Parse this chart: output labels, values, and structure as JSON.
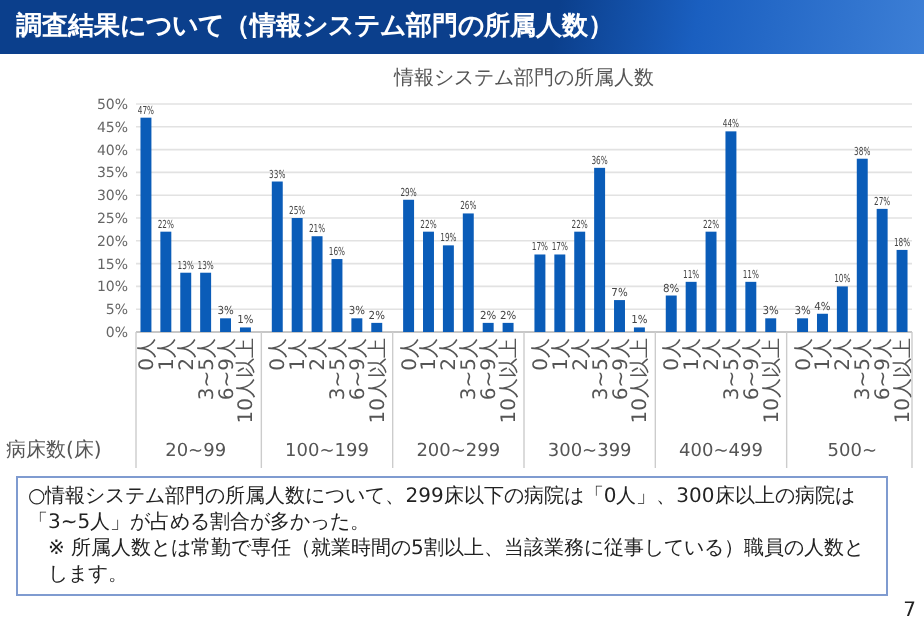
{
  "chart_data": {
    "type": "bar",
    "title": "調査結果について（情報システム部門の所属人数）",
    "subtitle": "情報システム部門の所属人数",
    "xlabel": "病床数(床)",
    "categories": [
      "0人",
      "1人",
      "2人",
      "3~5人",
      "6~9人",
      "10人以上",
      "0人",
      "1人",
      "2人",
      "3~5人",
      "6~9人",
      "10人以上",
      "0人",
      "1人",
      "2人",
      "3~5人",
      "6~9人",
      "10人以上",
      "0人",
      "1人",
      "2人",
      "3~5人",
      "6~9人",
      "10人以上",
      "0人",
      "1人",
      "2人",
      "3~5人",
      "6~9人",
      "10人以上",
      "0人",
      "1人",
      "2人",
      "3~5人",
      "6~9人",
      "10人以上"
    ],
    "values": [
      47,
      22,
      13,
      13,
      3,
      1,
      33,
      25,
      21,
      16,
      3,
      2,
      29,
      22,
      19,
      26,
      2,
      2,
      17,
      17,
      22,
      36,
      7,
      1,
      8,
      11,
      22,
      44,
      11,
      3,
      3,
      4,
      10,
      38,
      27,
      18
    ],
    "value_labels": [
      "47%",
      "22%",
      "13%",
      "13%",
      "3%",
      "1%",
      "33%",
      "25%",
      "21%",
      "16%",
      "3%",
      "2%",
      "29%",
      "22%",
      "19%",
      "26%",
      "2%",
      "2%",
      "17%",
      "17%",
      "22%",
      "36%",
      "7%",
      "1%",
      "8%",
      "11%",
      "22%",
      "44%",
      "11%",
      "3%",
      "3%",
      "4%",
      "10%",
      "38%",
      "27%",
      "18%"
    ],
    "color": "#0a5cb8",
    "ylim": [
      0,
      50
    ],
    "yticks": [
      {
        "value": 0,
        "label": "0%"
      },
      {
        "value": 5,
        "label": "5%"
      },
      {
        "value": 10,
        "label": "10%"
      },
      {
        "value": 15,
        "label": "15%"
      },
      {
        "value": 20,
        "label": "20%"
      },
      {
        "value": 25,
        "label": "25%"
      },
      {
        "value": 30,
        "label": "30%"
      },
      {
        "value": 35,
        "label": "35%"
      },
      {
        "value": 40,
        "label": "40%"
      },
      {
        "value": 45,
        "label": "45%"
      },
      {
        "value": 50,
        "label": "50%"
      }
    ],
    "grid": "y",
    "annotations": [
      "20~99",
      "100~199",
      "200~299",
      "300~399",
      "400~499",
      "500~",
      "○情報システム部門の所属人数について、299床以下の病院は「0人」、300床以上の病院は「3~5人」が占める割合が多かった。",
      "※ 所属人数とは常勤で専任（就業時間の5割以上、当該業務に従事している）職員の人数とします。",
      "7"
    ]
  }
}
